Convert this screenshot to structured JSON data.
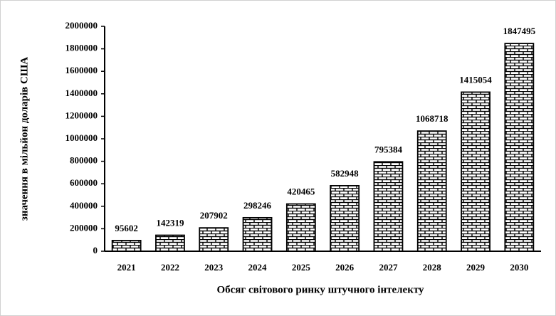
{
  "chart_data": {
    "type": "bar",
    "x_label": "Обсяг світового ринку штучного інтелекту",
    "y_label": "значення в мільйон доларів США",
    "categories": [
      "2021",
      "2022",
      "2023",
      "2024",
      "2025",
      "2026",
      "2027",
      "2028",
      "2029",
      "2030"
    ],
    "values": [
      95602,
      142319,
      207902,
      298246,
      420465,
      582948,
      795384,
      1068718,
      1415054,
      1847495
    ],
    "color": "#000000",
    "ylim": [
      0,
      2000000
    ],
    "yticks": [
      0,
      200000,
      400000,
      600000,
      800000,
      1000000,
      1200000,
      1400000,
      1600000,
      1800000,
      2000000
    ],
    "grid": false
  }
}
